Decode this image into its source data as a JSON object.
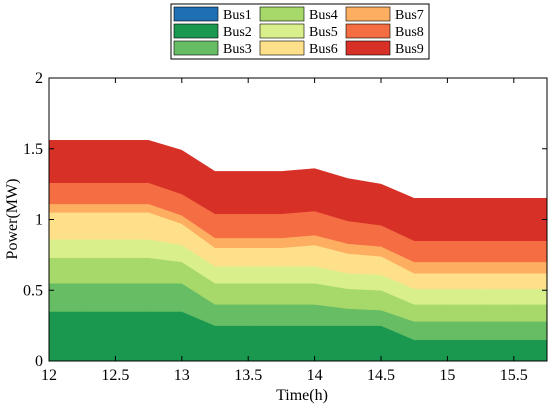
{
  "chart_data": {
    "type": "area",
    "stacked": true,
    "title": "",
    "xlabel": "Time(h)",
    "ylabel": "Power(MW)",
    "xlim": [
      12,
      15.75
    ],
    "ylim": [
      0,
      2
    ],
    "xticks": [
      12,
      12.5,
      13,
      13.5,
      14,
      14.5,
      15,
      15.5
    ],
    "xtick_labels": [
      "12",
      "12.5",
      "13",
      "13.5",
      "14",
      "14.5",
      "15",
      "15.5"
    ],
    "yticks": [
      0,
      0.5,
      1,
      1.5,
      2
    ],
    "ytick_labels": [
      "0",
      "0.5",
      "1",
      "1.5",
      "2"
    ],
    "grid": false,
    "legend_position": "top-center",
    "legend_columns": 3,
    "x": [
      12,
      12.25,
      12.5,
      12.75,
      13,
      13.25,
      13.5,
      13.75,
      14,
      14.25,
      14.5,
      14.75,
      15,
      15.25,
      15.5,
      15.75
    ],
    "series": [
      {
        "name": "Bus1",
        "color": "#1f6fb4",
        "values": [
          0,
          0,
          0,
          0,
          0,
          0,
          0,
          0,
          0,
          0,
          0,
          0,
          0,
          0,
          0,
          0
        ]
      },
      {
        "name": "Bus2",
        "color": "#1a9850",
        "values": [
          0.35,
          0.35,
          0.35,
          0.35,
          0.35,
          0.25,
          0.25,
          0.25,
          0.25,
          0.25,
          0.25,
          0.15,
          0.15,
          0.15,
          0.15,
          0.15
        ]
      },
      {
        "name": "Bus3",
        "color": "#66bd63",
        "values": [
          0.2,
          0.2,
          0.2,
          0.2,
          0.2,
          0.15,
          0.15,
          0.15,
          0.15,
          0.12,
          0.11,
          0.13,
          0.13,
          0.13,
          0.13,
          0.13
        ]
      },
      {
        "name": "Bus4",
        "color": "#a6d96a",
        "values": [
          0.18,
          0.18,
          0.18,
          0.18,
          0.15,
          0.15,
          0.15,
          0.15,
          0.15,
          0.14,
          0.14,
          0.12,
          0.12,
          0.12,
          0.12,
          0.12
        ]
      },
      {
        "name": "Bus5",
        "color": "#d9ef8b",
        "values": [
          0.13,
          0.13,
          0.13,
          0.13,
          0.12,
          0.12,
          0.12,
          0.12,
          0.12,
          0.11,
          0.11,
          0.11,
          0.11,
          0.11,
          0.11,
          0.11
        ]
      },
      {
        "name": "Bus6",
        "color": "#fee08b",
        "values": [
          0.19,
          0.19,
          0.19,
          0.19,
          0.15,
          0.13,
          0.13,
          0.13,
          0.15,
          0.14,
          0.13,
          0.11,
          0.11,
          0.11,
          0.11,
          0.11
        ]
      },
      {
        "name": "Bus7",
        "color": "#fdae61",
        "values": [
          0.06,
          0.06,
          0.06,
          0.06,
          0.06,
          0.07,
          0.07,
          0.07,
          0.07,
          0.07,
          0.07,
          0.08,
          0.08,
          0.08,
          0.08,
          0.08
        ]
      },
      {
        "name": "Bus8",
        "color": "#f46d43",
        "values": [
          0.15,
          0.15,
          0.15,
          0.15,
          0.15,
          0.17,
          0.17,
          0.17,
          0.17,
          0.16,
          0.15,
          0.15,
          0.15,
          0.15,
          0.15,
          0.15
        ]
      },
      {
        "name": "Bus9",
        "color": "#d73027",
        "values": [
          0.3,
          0.3,
          0.3,
          0.3,
          0.31,
          0.3,
          0.3,
          0.3,
          0.3,
          0.3,
          0.29,
          0.3,
          0.3,
          0.3,
          0.3,
          0.3
        ]
      }
    ]
  }
}
